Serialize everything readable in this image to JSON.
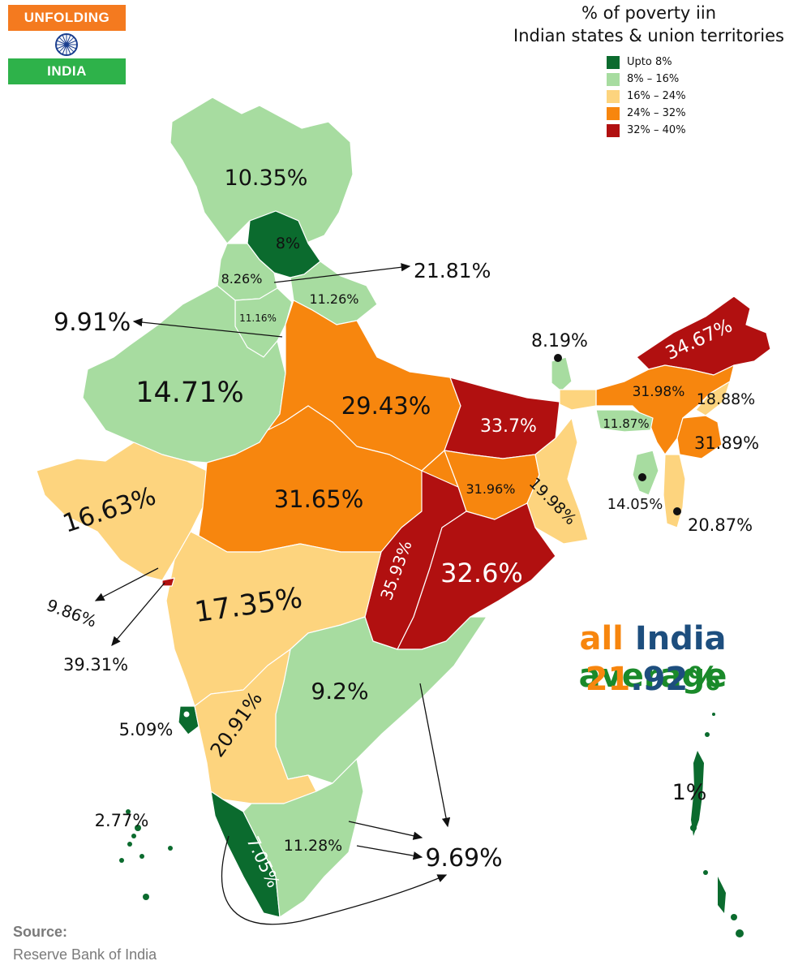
{
  "logo": {
    "top_text": "UNFOLDING",
    "bottom_text": "INDIA",
    "chakra_icon": "ashoka-chakra-icon"
  },
  "legend": {
    "title_line1": "% of poverty iin",
    "title_line2": "Indian states & union territories",
    "items": [
      {
        "label": "Upto 8%",
        "color": "#0b6b2e"
      },
      {
        "label": "8% – 16%",
        "color": "#a7dca0"
      },
      {
        "label": "16% – 24%",
        "color": "#fdd47e"
      },
      {
        "label": "24% – 32%",
        "color": "#f7860e"
      },
      {
        "label": "32% – 40%",
        "color": "#b11010"
      }
    ]
  },
  "labels": {
    "jk": "10.35%",
    "hp": "8%",
    "punjab": "8.26%",
    "uttarakhand_arrow": "21.81%",
    "haryana": "11.16%",
    "uttarakhand": "11.26%",
    "delhi": "9.91%",
    "rajasthan": "14.71%",
    "up": "29.43%",
    "bihar": "33.7%",
    "sikkim": "8.19%",
    "arunachal": "34.67%",
    "assam": "31.98%",
    "nagaland": "18.88%",
    "meghalaya": "11.87%",
    "manipur": "31.89%",
    "tripura": "14.05%",
    "mizoram": "20.87%",
    "gujarat": "16.63%",
    "mp": "31.65%",
    "jharkhand": "31.96%",
    "wb": "19.98%",
    "chhattisgarh": "35.93%",
    "odisha": "32.6%",
    "daman_diu": "9.86%",
    "dnh": "39.31%",
    "maharashtra": "17.35%",
    "ap": "9.2%",
    "goa": "5.09%",
    "karnataka": "20.91%",
    "lakshadweep": "2.77%",
    "kerala": "7.05%",
    "tn": "11.28%",
    "puducherry": "9.69%",
    "andaman": "1%"
  },
  "average": {
    "word_all": "all",
    "word_india": "India",
    "word_average": "average",
    "value_part1": "21",
    "value_dot": ".",
    "value_part2": "92",
    "value_part3": "%"
  },
  "source": {
    "label": "Source:",
    "name": "Reserve Bank of India"
  },
  "colors": {
    "c1": "#0b6b2e",
    "c2": "#a7dca0",
    "c3": "#fdd47e",
    "c4": "#f7860e",
    "c5": "#b11010",
    "avg_orange": "#f7860e",
    "avg_blue": "#1d4e7e",
    "avg_green": "#1a8a2a"
  }
}
